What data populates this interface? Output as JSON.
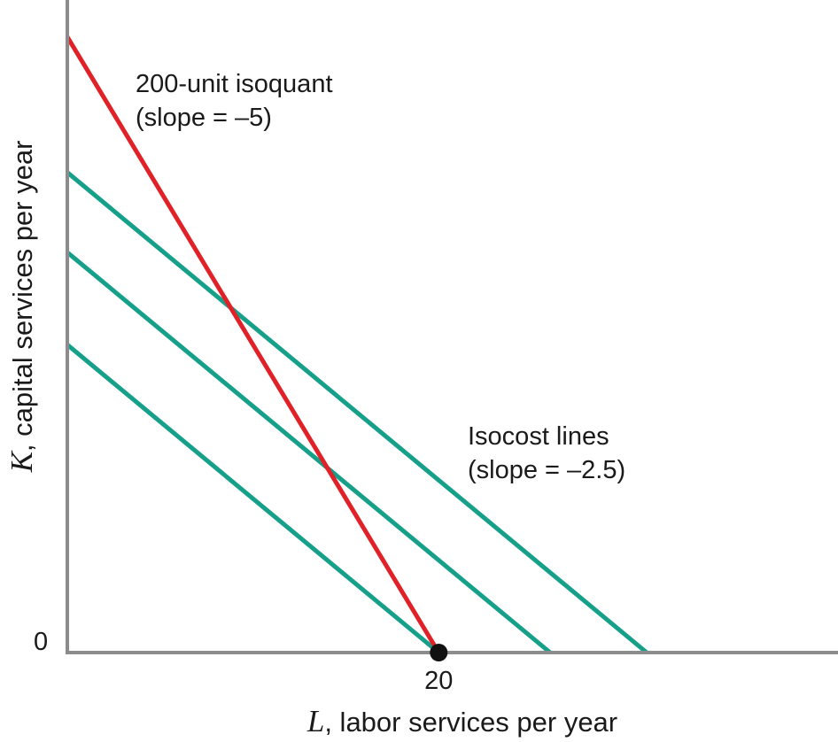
{
  "chart_data": {
    "type": "line",
    "x_axis": {
      "variable": "L",
      "label": ", labor services per year",
      "ticks": [
        {
          "value": 20,
          "label": "20"
        }
      ],
      "range": [
        0,
        41.5
      ]
    },
    "y_axis": {
      "variable": "K",
      "label": ", capital services per year",
      "origin_label": "0",
      "range": [
        0,
        106
      ]
    },
    "isoquant": {
      "name": "200-unit isoquant",
      "note": "(slope = –5)",
      "slope": -5,
      "color": "#e02228",
      "points": [
        [
          0,
          100
        ],
        [
          20,
          0
        ]
      ]
    },
    "isocost": {
      "name": "Isocost lines",
      "note": "(slope = –2.5)",
      "slope": -2.5,
      "color": "#16a08a",
      "lines": [
        {
          "points": [
            [
              0,
              50
            ],
            [
              20,
              0
            ]
          ]
        },
        {
          "points": [
            [
              0,
              65
            ],
            [
              26,
              0
            ]
          ]
        },
        {
          "points": [
            [
              0,
              78
            ],
            [
              31.2,
              0
            ]
          ]
        }
      ]
    },
    "highlight_point": {
      "x": 20,
      "y": 0,
      "color": "#111111"
    },
    "axis_color": "#8c8c8c"
  }
}
